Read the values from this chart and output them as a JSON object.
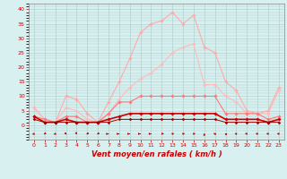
{
  "x": [
    0,
    1,
    2,
    3,
    4,
    5,
    6,
    7,
    8,
    9,
    10,
    11,
    12,
    13,
    14,
    15,
    16,
    17,
    18,
    19,
    20,
    21,
    22,
    23
  ],
  "series": [
    {
      "name": "rafales_max",
      "color": "#ffaaaa",
      "linewidth": 0.8,
      "marker": "D",
      "markersize": 1.8,
      "y": [
        6,
        2,
        1,
        10,
        9,
        4,
        1,
        8,
        15,
        23,
        32,
        35,
        36,
        39,
        35,
        38,
        27,
        25,
        15,
        12,
        5,
        4,
        5,
        13
      ]
    },
    {
      "name": "rafales_mean",
      "color": "#ffbbbb",
      "linewidth": 0.8,
      "marker": "D",
      "markersize": 1.8,
      "y": [
        6,
        2,
        1,
        6,
        5,
        2,
        1,
        4,
        9,
        13,
        16,
        18,
        21,
        25,
        27,
        28,
        14,
        14,
        10,
        8,
        4,
        4,
        4,
        12
      ]
    },
    {
      "name": "vent_max",
      "color": "#ff7777",
      "linewidth": 0.8,
      "marker": "D",
      "markersize": 1.8,
      "y": [
        3,
        2,
        1,
        3,
        3,
        1,
        1,
        4,
        8,
        8,
        10,
        10,
        10,
        10,
        10,
        10,
        10,
        10,
        4,
        4,
        4,
        4,
        2,
        3
      ]
    },
    {
      "name": "vent_mean",
      "color": "#cc0000",
      "linewidth": 1.2,
      "marker": "D",
      "markersize": 1.8,
      "y": [
        3,
        1,
        1,
        2,
        1,
        1,
        1,
        2,
        3,
        4,
        4,
        4,
        4,
        4,
        4,
        4,
        4,
        4,
        2,
        2,
        2,
        2,
        1,
        2
      ]
    },
    {
      "name": "vent_min",
      "color": "#990000",
      "linewidth": 0.7,
      "marker": "D",
      "markersize": 1.5,
      "y": [
        2,
        1,
        1,
        1,
        1,
        1,
        1,
        1,
        2,
        2,
        2,
        2,
        2,
        2,
        2,
        2,
        2,
        2,
        1,
        1,
        1,
        1,
        1,
        1
      ]
    }
  ],
  "arrow_directions": [
    225,
    200,
    220,
    160,
    170,
    200,
    200,
    90,
    90,
    90,
    90,
    90,
    60,
    45,
    45,
    45,
    0,
    330,
    340,
    320,
    310,
    310,
    315,
    315
  ],
  "xlabel": "Vent moyen/en rafales ( km/h )",
  "xlabel_color": "#cc0000",
  "xlabel_fontsize": 6,
  "background_color": "#d8f0f0",
  "grid_color": "#aacccc",
  "ylim": [
    -5,
    42
  ],
  "xlim": [
    -0.5,
    23.5
  ],
  "yticks": [
    0,
    5,
    10,
    15,
    20,
    25,
    30,
    35,
    40
  ],
  "xticks": [
    0,
    1,
    2,
    3,
    4,
    5,
    6,
    7,
    8,
    9,
    10,
    11,
    12,
    13,
    14,
    15,
    16,
    17,
    18,
    19,
    20,
    21,
    22,
    23
  ],
  "tick_color": "#cc0000",
  "tick_fontsize": 4.5,
  "spine_color": "#888888"
}
